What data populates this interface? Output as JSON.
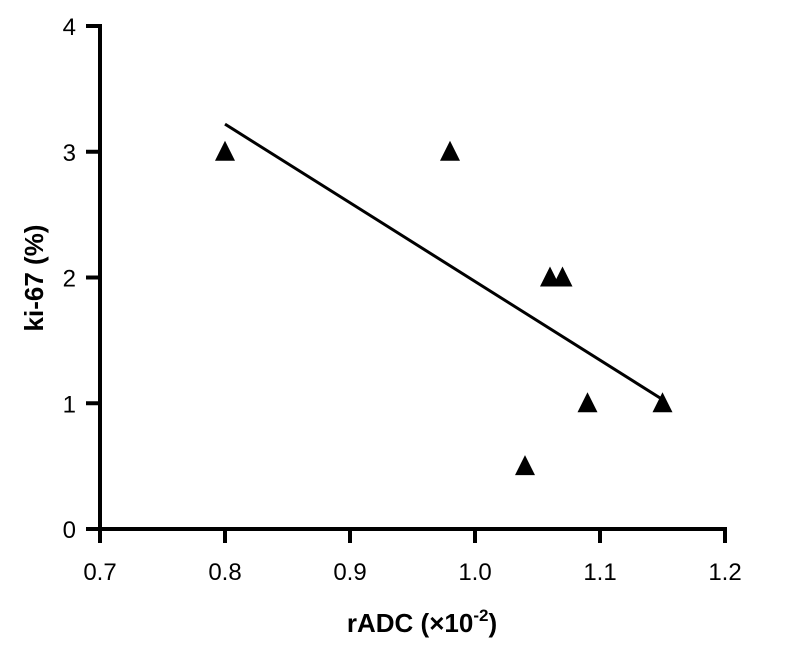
{
  "chart_data": {
    "type": "scatter",
    "title": "",
    "xlabel": "rADC (×10",
    "xlabel_sup": "-2",
    "xlabel_close": ")",
    "ylabel": "ki-67 (%)",
    "xlim": [
      0.7,
      1.2
    ],
    "ylim": [
      0,
      4
    ],
    "xticks": [
      0.7,
      0.8,
      0.9,
      1.0,
      1.1,
      1.2
    ],
    "xtick_labels": [
      "0.7",
      "0.8",
      "0.9",
      "1.0",
      "1.1",
      "1.2"
    ],
    "yticks": [
      0,
      1,
      2,
      3,
      4
    ],
    "ytick_labels": [
      "0",
      "1",
      "2",
      "3",
      "4"
    ],
    "grid": false,
    "marker": "triangle",
    "color": "#000000",
    "series": [
      {
        "points": [
          {
            "x": 0.8,
            "y": 3.0
          },
          {
            "x": 0.98,
            "y": 3.0
          },
          {
            "x": 1.06,
            "y": 2.0
          },
          {
            "x": 1.07,
            "y": 2.0
          },
          {
            "x": 1.09,
            "y": 1.0
          },
          {
            "x": 1.15,
            "y": 1.0
          },
          {
            "x": 1.04,
            "y": 0.5
          }
        ]
      }
    ],
    "trendline": {
      "x": [
        0.8,
        1.15
      ],
      "y": [
        3.22,
        1.03
      ]
    }
  }
}
